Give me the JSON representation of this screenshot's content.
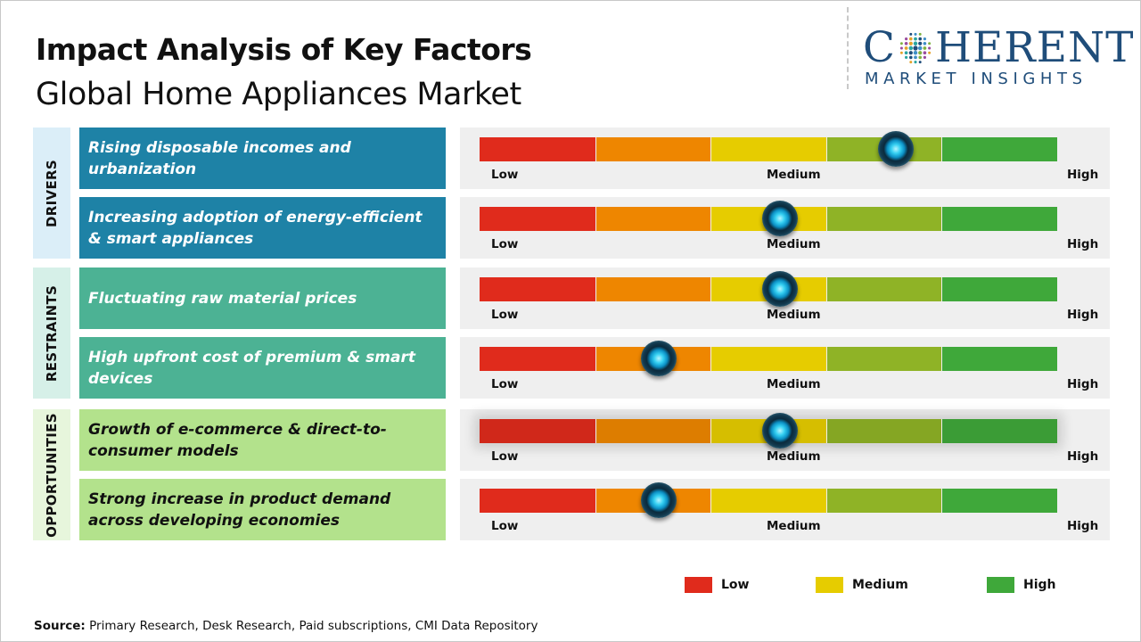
{
  "title": "Impact Analysis of Key Factors",
  "subtitle": "Global Home Appliances Market",
  "logo": {
    "word_left": "C",
    "word_right": "HERENT",
    "tagline": "MARKET INSIGHTS"
  },
  "scale_labels": {
    "low": "Low",
    "medium": "Medium",
    "high": "High"
  },
  "colors": {
    "segments": [
      "#e02b1c",
      "#ee8600",
      "#e6cc00",
      "#8fb326",
      "#3fa83a"
    ],
    "drivers_category": "#dbeef8",
    "drivers_factor": "#1e82a6",
    "restraints_category": "#d6f0e8",
    "restraints_factor": "#4cb294",
    "opportunities_category": "#e7f6dc",
    "opportunities_factor": "#b3e28c"
  },
  "chart_data": {
    "type": "gauge",
    "scale": [
      "Low",
      "Medium",
      "High"
    ],
    "segments": 5,
    "groups": [
      {
        "category": "DRIVERS",
        "factors": [
          {
            "label": "Rising disposable incomes and urbanization",
            "impact": 0.72
          },
          {
            "label": "Increasing adoption of energy-efficient & smart appliances",
            "impact": 0.52
          }
        ]
      },
      {
        "category": "RESTRAINTS",
        "factors": [
          {
            "label": "Fluctuating raw material prices",
            "impact": 0.52
          },
          {
            "label": "High upfront cost of premium & smart devices",
            "impact": 0.31
          }
        ]
      },
      {
        "category": "OPPORTUNITIES",
        "factors": [
          {
            "label": "Growth of e-commerce & direct-to-consumer models",
            "impact": 0.52
          },
          {
            "label": "Strong increase in product demand across developing economies",
            "impact": 0.31
          }
        ]
      }
    ],
    "legend": [
      {
        "label": "Low",
        "color": "#e02b1c"
      },
      {
        "label": "Medium",
        "color": "#e6cc00"
      },
      {
        "label": "High",
        "color": "#3fa83a"
      }
    ]
  },
  "source": {
    "label": "Source:",
    "text": "Primary Research, Desk Research, Paid subscriptions, CMI Data Repository"
  }
}
